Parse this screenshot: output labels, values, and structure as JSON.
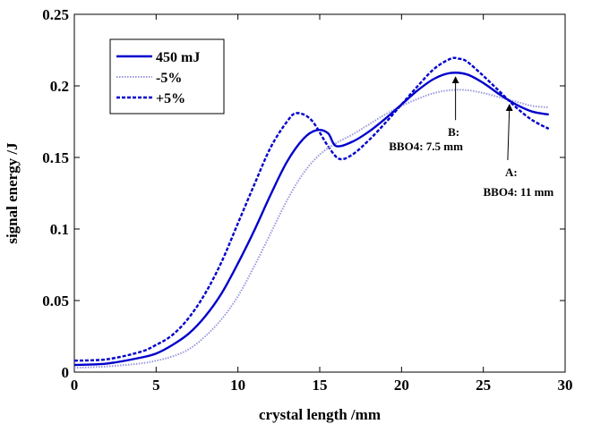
{
  "chart_data": {
    "type": "line",
    "title": "",
    "xlabel": "crystal length /mm",
    "ylabel": "signal energy /J",
    "xlim": [
      0,
      30
    ],
    "ylim": [
      0,
      0.25
    ],
    "x_ticks": [
      0,
      5,
      10,
      15,
      20,
      25,
      30
    ],
    "x_tick_labels": [
      "0",
      "5",
      "10",
      "15",
      "20",
      "25",
      "30"
    ],
    "y_ticks": [
      0,
      0.05,
      0.1,
      0.15,
      0.2,
      0.25
    ],
    "y_tick_labels": [
      "0",
      "0.05",
      "0.1",
      "0.15",
      "0.2",
      "0.25"
    ],
    "grid": false,
    "legend_position": "top-left",
    "series": [
      {
        "name": "450 mJ",
        "style": "solid",
        "color": "#0000cc",
        "x": [
          0,
          2,
          4,
          5,
          6,
          7,
          8,
          9,
          10,
          11,
          12,
          13,
          14,
          14.8,
          15.5,
          16,
          17,
          18,
          19,
          20,
          21,
          22,
          23,
          24,
          25,
          26,
          27,
          28,
          29
        ],
        "y": [
          0.005,
          0.006,
          0.01,
          0.013,
          0.019,
          0.027,
          0.039,
          0.055,
          0.076,
          0.099,
          0.124,
          0.147,
          0.163,
          0.169,
          0.167,
          0.158,
          0.161,
          0.168,
          0.177,
          0.187,
          0.197,
          0.205,
          0.209,
          0.208,
          0.202,
          0.194,
          0.187,
          0.182,
          0.18
        ]
      },
      {
        "name": "-5%",
        "style": "dotted",
        "color": "#9999dd",
        "x": [
          0,
          2,
          4,
          5,
          6,
          7,
          8,
          9,
          10,
          11,
          12,
          13,
          14,
          15,
          16,
          17,
          18,
          19,
          20,
          21,
          22,
          23,
          24,
          25,
          26,
          27,
          28,
          29
        ],
        "y": [
          0.003,
          0.004,
          0.006,
          0.008,
          0.011,
          0.016,
          0.025,
          0.037,
          0.053,
          0.074,
          0.097,
          0.12,
          0.139,
          0.152,
          0.16,
          0.166,
          0.173,
          0.18,
          0.186,
          0.191,
          0.195,
          0.197,
          0.197,
          0.195,
          0.192,
          0.189,
          0.186,
          0.185
        ]
      },
      {
        "name": "+5%",
        "style": "dashed",
        "color": "#0000cc",
        "x": [
          0,
          2,
          4,
          5,
          6,
          7,
          8,
          9,
          10,
          11,
          12,
          13,
          13.6,
          14.5,
          15.5,
          16.2,
          17,
          18,
          19,
          20,
          21,
          22,
          23,
          23.5,
          24,
          25,
          26,
          27,
          28,
          29
        ],
        "y": [
          0.008,
          0.009,
          0.014,
          0.019,
          0.026,
          0.038,
          0.055,
          0.077,
          0.104,
          0.131,
          0.157,
          0.175,
          0.181,
          0.176,
          0.158,
          0.149,
          0.152,
          0.162,
          0.174,
          0.187,
          0.2,
          0.212,
          0.219,
          0.219,
          0.217,
          0.207,
          0.196,
          0.185,
          0.176,
          0.17
        ]
      }
    ],
    "annotations": [
      {
        "id": "B",
        "lines": [
          "B:",
          "BBO4: 7.5 mm"
        ],
        "point": [
          23.3,
          0.208
        ]
      },
      {
        "id": "A",
        "lines": [
          "A:",
          "BBO4: 11 mm"
        ],
        "point": [
          26.6,
          0.19
        ]
      }
    ]
  }
}
